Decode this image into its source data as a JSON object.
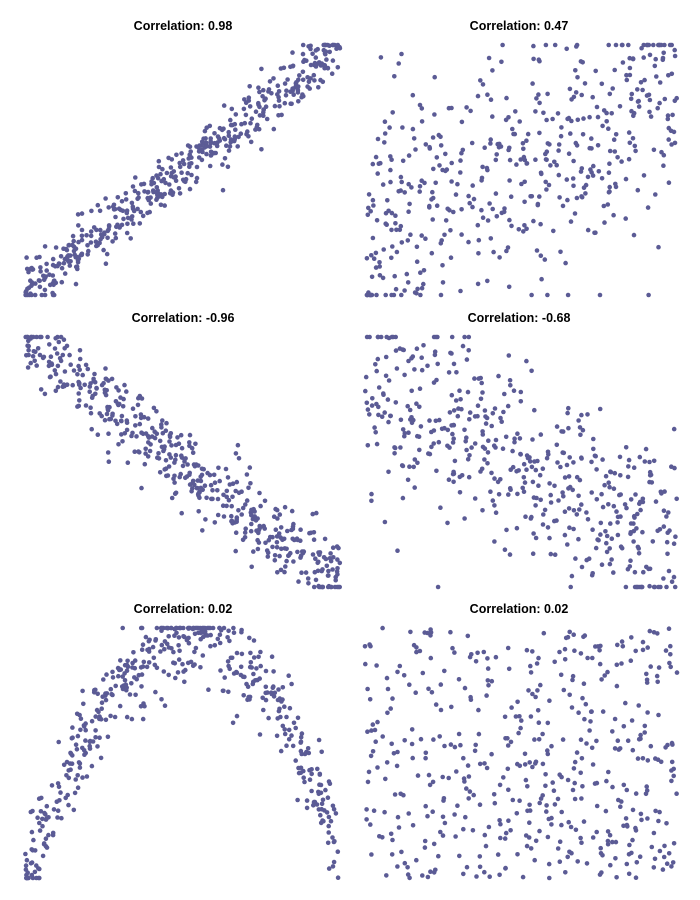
{
  "chart_data": [
    {
      "type": "scatter",
      "title": "Correlation:  0.98",
      "shape": "linear",
      "correlation": 0.98,
      "n_points": 480,
      "seed": 11,
      "xlim": [
        0,
        1
      ],
      "ylim": [
        0,
        1
      ],
      "grid": false,
      "axes": false
    },
    {
      "type": "scatter",
      "title": "Correlation:  0.47",
      "shape": "linear",
      "correlation": 0.47,
      "n_points": 480,
      "seed": 23,
      "xlim": [
        0,
        1
      ],
      "ylim": [
        0,
        1
      ],
      "grid": false,
      "axes": false
    },
    {
      "type": "scatter",
      "title": "Correlation:  -0.96",
      "shape": "linear",
      "correlation": -0.96,
      "n_points": 480,
      "seed": 37,
      "xlim": [
        0,
        1
      ],
      "ylim": [
        0,
        1
      ],
      "grid": false,
      "axes": false
    },
    {
      "type": "scatter",
      "title": "Correlation:  -0.68",
      "shape": "linear",
      "correlation": -0.68,
      "n_points": 480,
      "seed": 41,
      "xlim": [
        0,
        1
      ],
      "ylim": [
        0,
        1
      ],
      "grid": false,
      "axes": false
    },
    {
      "type": "scatter",
      "title": "Correlation:  0.02",
      "shape": "parabola",
      "correlation": 0.02,
      "n_points": 480,
      "seed": 53,
      "xlim": [
        0,
        1
      ],
      "ylim": [
        0,
        1
      ],
      "grid": false,
      "axes": false
    },
    {
      "type": "scatter",
      "title": "Correlation:  0.02",
      "shape": "uniform",
      "correlation": 0.02,
      "n_points": 480,
      "seed": 67,
      "xlim": [
        0,
        1
      ],
      "ylim": [
        0,
        1
      ],
      "grid": false,
      "axes": false
    }
  ],
  "colors": {
    "points": "#5b5b95",
    "title": "#000000",
    "background": "#ffffff"
  }
}
